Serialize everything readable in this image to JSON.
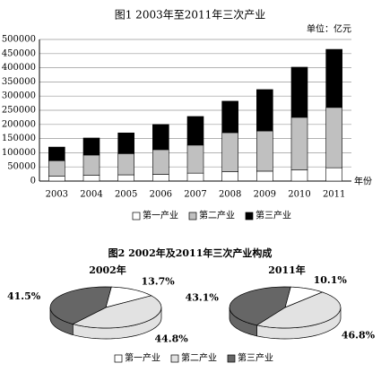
{
  "chart_data": [
    {
      "type": "bar",
      "stacked": true,
      "title": "图1 2003年至2011年三次产业",
      "unit": "单位：亿元",
      "x_label": "年份",
      "categories": [
        "2003",
        "2004",
        "2005",
        "2006",
        "2007",
        "2008",
        "2009",
        "2010",
        "2011"
      ],
      "series": [
        {
          "name": "第一产业",
          "color": "#ffffff",
          "values": [
            17000,
            21000,
            22000,
            24000,
            28000,
            33000,
            35000,
            40000,
            47000
          ]
        },
        {
          "name": "第二产业",
          "color": "#c0c0c0",
          "values": [
            55000,
            71000,
            75000,
            87000,
            99000,
            138000,
            142000,
            185000,
            213000
          ]
        },
        {
          "name": "第三产业",
          "color": "#000000",
          "values": [
            48000,
            60000,
            73000,
            89000,
            101000,
            111000,
            146000,
            177000,
            205000
          ]
        }
      ],
      "ylim": [
        0,
        500000
      ],
      "yticks": [
        0,
        50000,
        100000,
        150000,
        200000,
        250000,
        300000,
        350000,
        400000,
        450000,
        500000
      ],
      "grid": true
    },
    {
      "type": "pie",
      "title": "2002年",
      "categories": [
        "第一产业",
        "第二产业",
        "第三产业"
      ],
      "values": [
        13.7,
        44.8,
        41.5
      ],
      "value_labels": [
        "13.7%",
        "44.8%",
        "41.5%"
      ],
      "colors": [
        "#ffffff",
        "#e2e2e2",
        "#666666"
      ]
    },
    {
      "type": "pie",
      "title": "2011年",
      "categories": [
        "第一产业",
        "第二产业",
        "第三产业"
      ],
      "values": [
        10.1,
        46.8,
        43.1
      ],
      "value_labels": [
        "10.1%",
        "46.8%",
        "43.1%"
      ],
      "colors": [
        "#ffffff",
        "#e2e2e2",
        "#666666"
      ]
    }
  ],
  "figure_2_title": "图2 2002年及2011年三次产业构成"
}
